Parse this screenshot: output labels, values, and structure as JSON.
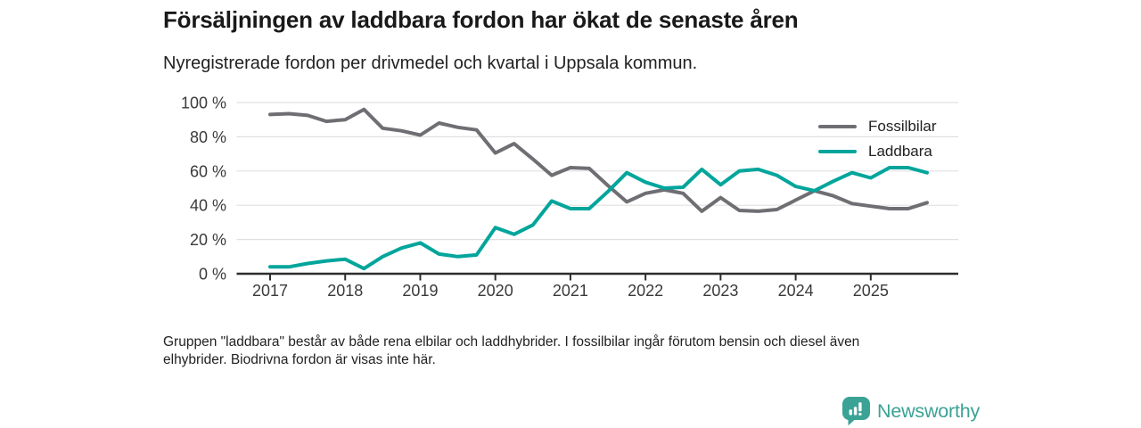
{
  "header": {
    "title": "Försäljningen av laddbara fordon har ökat de senaste åren",
    "subtitle": "Nyregistrerade fordon per drivmedel och kvartal i Uppsala kommun."
  },
  "footnote": {
    "line1": "Gruppen \"laddbara\" består av både rena elbilar och laddhybrider. I fossilbilar ingår förutom bensin och diesel även",
    "line2": "elhybrider. Biodrivna fordon är visas inte här."
  },
  "logo": {
    "brand": "Newsworthy",
    "color": "#3AA294",
    "icon": "bar-chart-speech-bubble-icon"
  },
  "chart_data": {
    "type": "line",
    "title": "Försäljningen av laddbara fordon har ökat de senaste åren",
    "subtitle": "Nyregistrerade fordon per drivmedel och kvartal i Uppsala kommun.",
    "unit": "%",
    "ylim": [
      0,
      100
    ],
    "grid": "horizontal",
    "legend_position": "top-right",
    "categories": [
      "2017-Q1",
      "2017-Q2",
      "2017-Q3",
      "2017-Q4",
      "2018-Q1",
      "2018-Q2",
      "2018-Q3",
      "2018-Q4",
      "2019-Q1",
      "2019-Q2",
      "2019-Q3",
      "2019-Q4",
      "2020-Q1",
      "2020-Q2",
      "2020-Q3",
      "2020-Q4",
      "2021-Q1",
      "2021-Q2",
      "2021-Q3",
      "2021-Q4",
      "2022-Q1",
      "2022-Q2",
      "2022-Q3",
      "2022-Q4",
      "2023-Q1",
      "2023-Q2",
      "2023-Q3",
      "2023-Q4",
      "2024-Q1",
      "2024-Q2",
      "2024-Q3",
      "2024-Q4",
      "2025-Q1",
      "2025-Q2",
      "2025-Q3",
      "2025-Q4"
    ],
    "series": [
      {
        "name": "Fossilbilar",
        "color": "#6E6E73",
        "values": [
          93,
          93.5,
          92.5,
          89,
          90,
          96,
          85,
          83.5,
          81,
          88,
          85.5,
          84,
          70.5,
          76,
          67,
          57.5,
          62,
          61.5,
          51.5,
          42,
          47,
          49,
          47,
          36.5,
          44.5,
          37,
          36.5,
          37.5,
          43,
          48.5,
          45.5,
          41,
          39.5,
          38,
          38,
          41.5
        ]
      },
      {
        "name": "Laddbara",
        "color": "#00A59C",
        "values": [
          4,
          4,
          6,
          7.5,
          8.5,
          3,
          10,
          15,
          18,
          11.5,
          10,
          11,
          27,
          23,
          28.5,
          42.5,
          38,
          38,
          48,
          59,
          53.5,
          50,
          50.5,
          61,
          52,
          60,
          61,
          57.5,
          51,
          48.5,
          54,
          59,
          56,
          62,
          62,
          59
        ]
      }
    ],
    "y_axis": {
      "tick_values": [
        100,
        80,
        60,
        40,
        20,
        0
      ],
      "tick_labels": [
        "100 %",
        "80 %",
        "60 %",
        "40 %",
        "20 %",
        "0 %"
      ]
    },
    "x_axis": {
      "tick_labels": [
        "2017",
        "2018",
        "2019",
        "2020",
        "2021",
        "2022",
        "2023",
        "2024",
        "2025"
      ],
      "tick_category_indices": [
        0,
        4,
        8,
        12,
        16,
        20,
        24,
        28,
        32
      ]
    },
    "colors": {
      "gridline": "#E0E0E0",
      "axis": "#2E2E2E",
      "tick_text": "#3A3A3A"
    }
  }
}
